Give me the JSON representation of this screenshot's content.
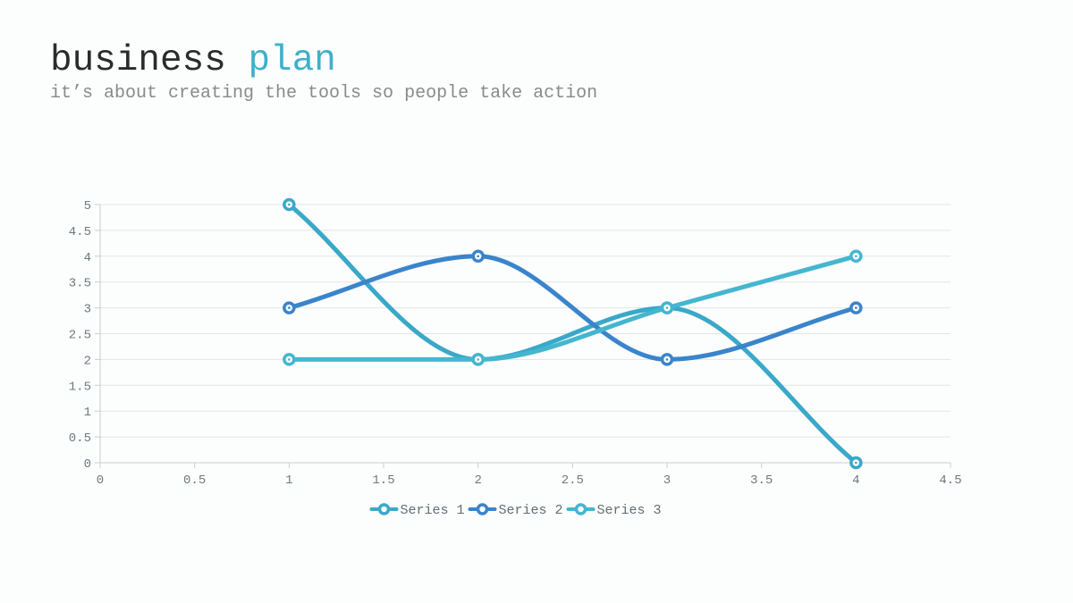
{
  "header": {
    "title_main": "business",
    "title_accent": "plan",
    "subtitle": "it’s about creating the tools so people take action"
  },
  "chart_data": {
    "type": "line",
    "smooth": true,
    "xlim": [
      0,
      4.5
    ],
    "ylim": [
      0,
      5
    ],
    "x_ticks": [
      "0",
      "0.5",
      "1",
      "1.5",
      "2",
      "2.5",
      "3",
      "3.5",
      "4",
      "4.5"
    ],
    "y_ticks": [
      "0",
      "0.5",
      "1",
      "1.5",
      "2",
      "2.5",
      "3",
      "3.5",
      "4",
      "4.5",
      "5"
    ],
    "grid": "horizontal",
    "legend_position": "bottom-center",
    "x": [
      1,
      2,
      3,
      4
    ],
    "series": [
      {
        "name": "Series 1",
        "values": [
          5,
          2,
          3,
          0
        ],
        "color": "#3aa8c8"
      },
      {
        "name": "Series 2",
        "values": [
          3,
          4,
          2,
          3
        ],
        "color": "#3a84cc"
      },
      {
        "name": "Series 3",
        "values": [
          2,
          2,
          3,
          4
        ],
        "color": "#44b6cf"
      }
    ]
  }
}
